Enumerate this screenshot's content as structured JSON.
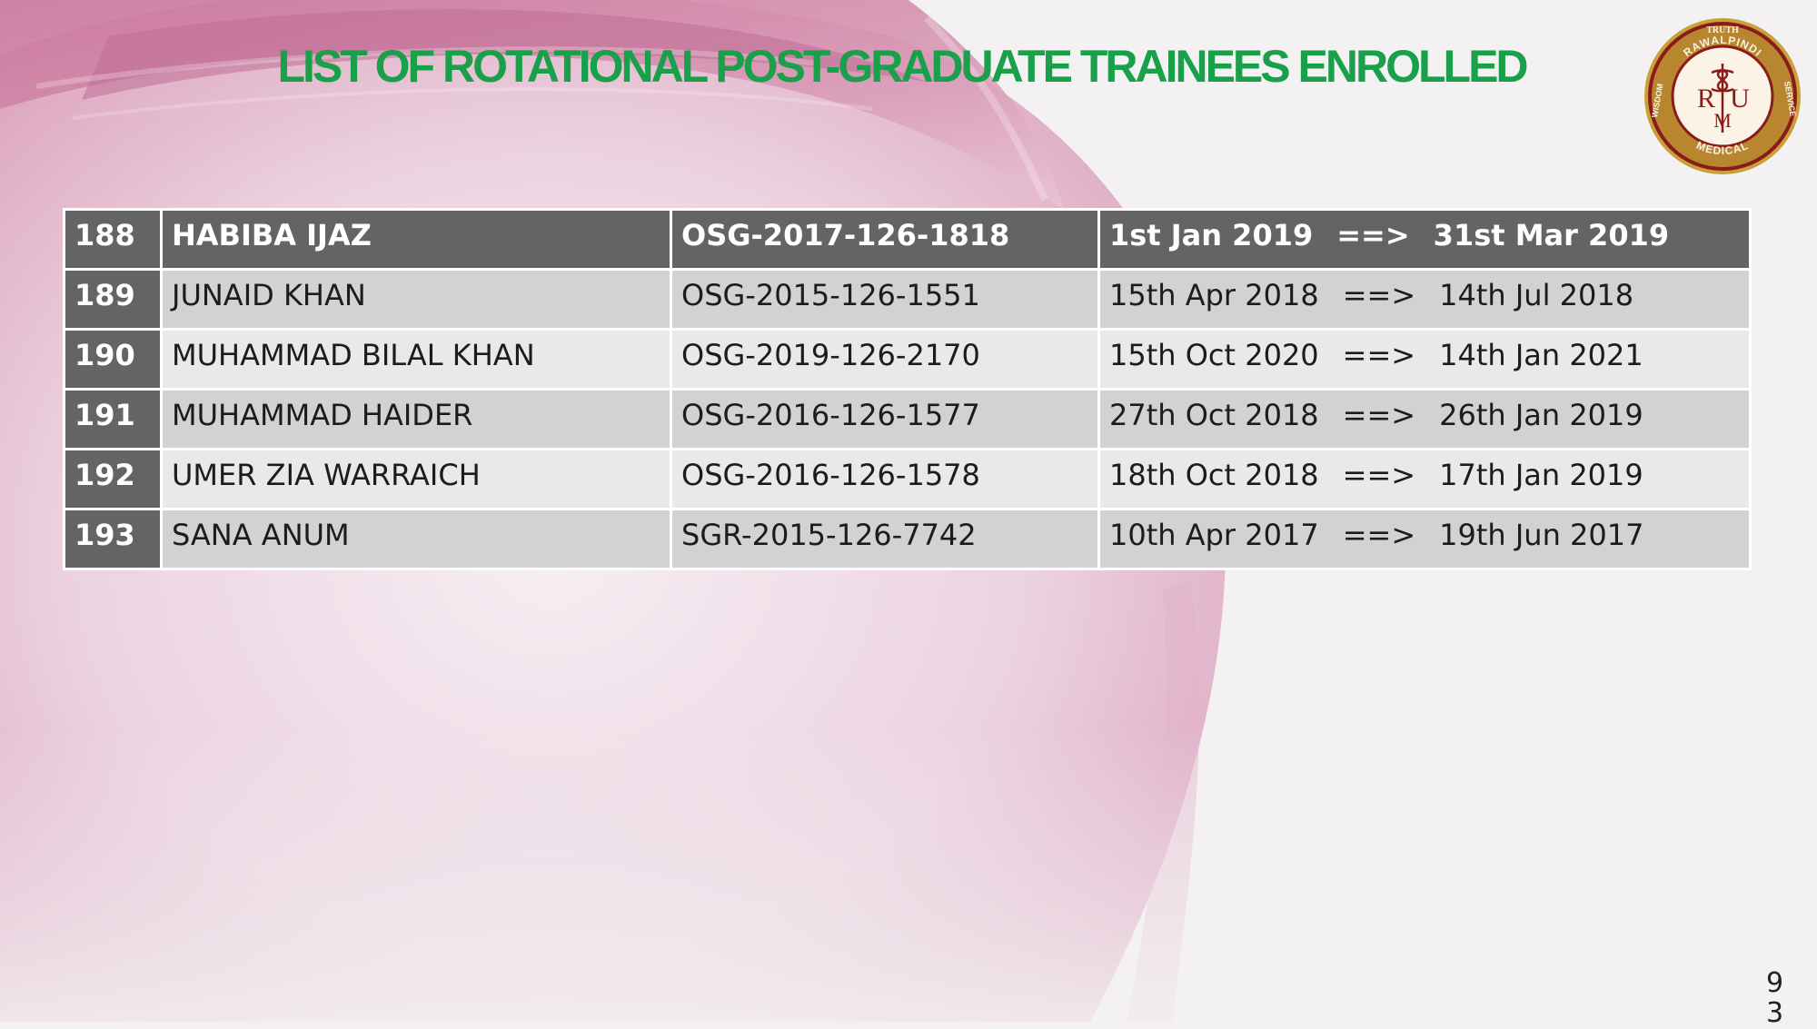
{
  "slide": {
    "title": "LIST OF ROTATIONAL POST-GRADUATE TRAINEES ENROLLED",
    "page_number_line1": "9",
    "page_number_line2": "3"
  },
  "logo": {
    "motto_top": "TRUTH",
    "ring_text_left": "RAWALPINDI",
    "ring_text_bottom": "MEDICAL",
    "ring_text_right": "UNIVERSITY",
    "left_word": "WISDOM",
    "right_word": "SERVICE",
    "monogram_left": "R",
    "monogram_right": "U",
    "monogram_bottom": "M",
    "icon": "caduceus-icon"
  },
  "table": {
    "arrow": "==>",
    "rows": [
      {
        "num": "188",
        "name": "HABIBA IJAZ",
        "reg": "OSG-2017-126-1818",
        "from": "1st Jan 2019",
        "to": "31st Mar 2019"
      },
      {
        "num": "189",
        "name": "JUNAID KHAN",
        "reg": "OSG-2015-126-1551",
        "from": "15th Apr 2018",
        "to": "14th Jul 2018"
      },
      {
        "num": "190",
        "name": "MUHAMMAD BILAL KHAN",
        "reg": "OSG-2019-126-2170",
        "from": "15th Oct 2020",
        "to": "14th Jan 2021"
      },
      {
        "num": "191",
        "name": "MUHAMMAD HAIDER",
        "reg": "OSG-2016-126-1577",
        "from": "27th Oct 2018",
        "to": "26th Jan 2019"
      },
      {
        "num": "192",
        "name": "UMER ZIA WARRAICH",
        "reg": "OSG-2016-126-1578",
        "from": "18th Oct 2018",
        "to": "17th Jan 2019"
      },
      {
        "num": "193",
        "name": "SANA ANUM",
        "reg": "SGR-2015-126-7742",
        "from": "10th Apr 2017",
        "to": "19th Jun 2017"
      }
    ]
  },
  "colors": {
    "title": "#1aa04a",
    "header_bg": "#646464",
    "row_dark": "#d2d2d2",
    "row_light": "#e9e9e9",
    "logo_maroon": "#8b1a1a",
    "logo_gold": "#c8a03a"
  }
}
